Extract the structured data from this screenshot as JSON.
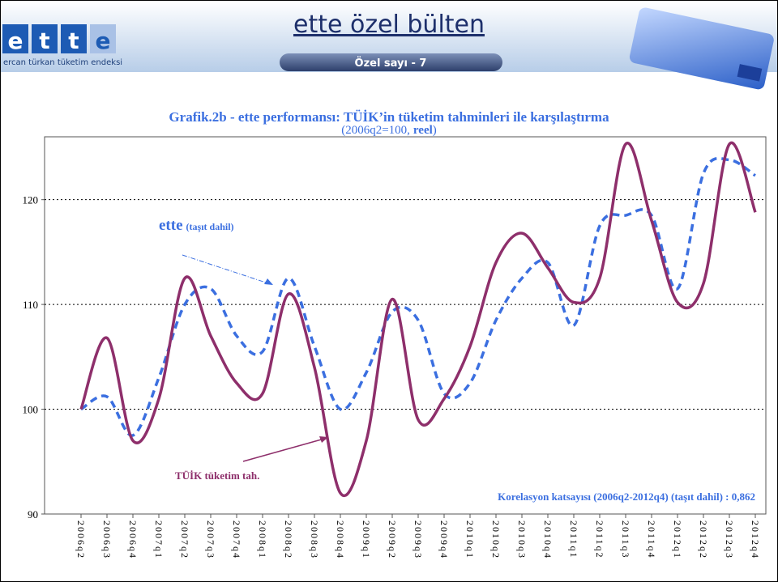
{
  "header": {
    "logo_letters": [
      "e",
      "t",
      "t",
      "e"
    ],
    "logo_caption": "ercan türkan tüketim endeksi",
    "title": "ette özel bülten",
    "issue": "Özel sayı - 7"
  },
  "chart_data": {
    "type": "line",
    "title": "Grafik.2b - ette performansı: TÜİK’in tüketim tahminleri ile karşılaştırma",
    "subtitle_start": "(2006q2=100,",
    "subtitle_bold": "reel",
    "subtitle_end": ")",
    "categories": [
      "2006q2",
      "2006q3",
      "2006q4",
      "2007q1",
      "2007q2",
      "2007q3",
      "2007q4",
      "2008q1",
      "2008q2",
      "2008q3",
      "2008q4",
      "2009q1",
      "2009q2",
      "2009q3",
      "2009q4",
      "2010q1",
      "2010q2",
      "2010q3",
      "2010q4",
      "2011q1",
      "2011q2",
      "2011q3",
      "2011q4",
      "2012q1",
      "2012q2",
      "2012q3",
      "2012q4"
    ],
    "series": [
      {
        "name": "ette",
        "note": "(taşıt dahil)",
        "color": "#3b6fe0",
        "dashed": true,
        "values": [
          100,
          101.2,
          97.5,
          103,
          110,
          111.5,
          107,
          105.5,
          112.5,
          106,
          100,
          103.5,
          109.3,
          108.5,
          101.5,
          102.5,
          108.5,
          112.5,
          114,
          108,
          117.5,
          118.5,
          118.5,
          111.5,
          122.5,
          123.8,
          122.3
        ]
      },
      {
        "name": "TÜİK  tüketim tah.",
        "color": "#8e2f6b",
        "dashed": false,
        "values": [
          100,
          106.8,
          97,
          101,
          112.5,
          107,
          102.5,
          101.5,
          111,
          104,
          92,
          97,
          110.5,
          99,
          101,
          106,
          114,
          116.8,
          113.5,
          110.2,
          112.5,
          125.3,
          118,
          110.2,
          112,
          125.3,
          118.8
        ]
      }
    ],
    "annotation": "Korelasyon katsayısı (2006q2-2012q4) (taşıt dahil) : 0,862",
    "ylim": [
      90,
      126
    ],
    "yticks": [
      90,
      100,
      110,
      120
    ],
    "grid": true
  }
}
